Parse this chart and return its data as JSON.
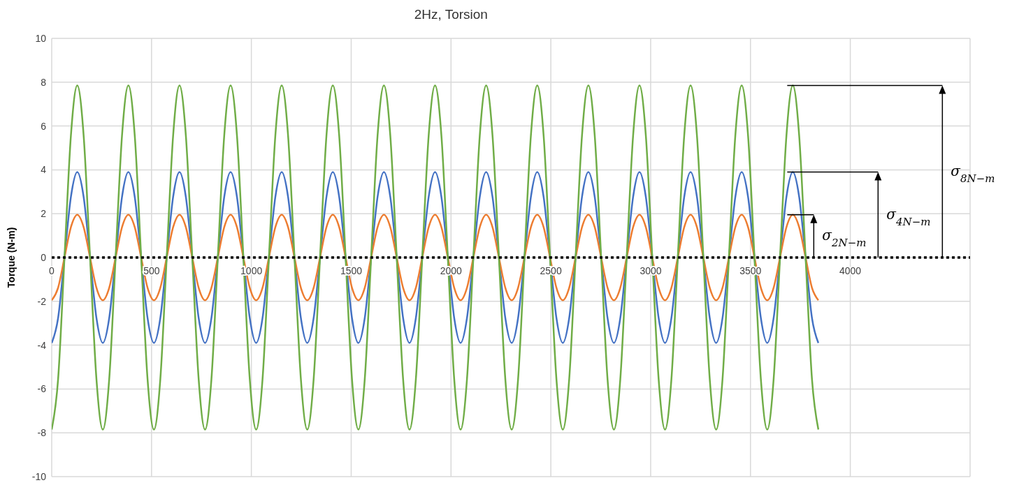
{
  "chart_data": {
    "type": "line",
    "title": "2Hz, Torsion",
    "ylabel": "Torque (N-m)",
    "x": [
      0,
      32,
      64,
      96,
      128,
      160,
      192,
      224,
      256,
      288,
      320,
      352,
      384,
      416,
      448,
      480,
      512,
      544,
      576,
      608,
      640,
      672,
      704,
      736,
      768,
      800,
      832,
      864,
      896,
      928,
      960,
      992,
      1024,
      1056,
      1088,
      1120,
      1152,
      1184,
      1216,
      1248,
      1280,
      1312,
      1344,
      1376,
      1408,
      1440,
      1472,
      1504,
      1536,
      1568,
      1600,
      1632,
      1664,
      1696,
      1728,
      1760,
      1792,
      1824,
      1856,
      1888,
      1920,
      1952,
      1984,
      2016,
      2048,
      2080,
      2112,
      2144,
      2176,
      2208,
      2240,
      2272,
      2304,
      2336,
      2368,
      2400,
      2432,
      2464,
      2496,
      2528,
      2560,
      2592,
      2624,
      2656,
      2688,
      2720,
      2752,
      2784,
      2816,
      2848,
      2880,
      2912,
      2944,
      2976,
      3008,
      3040,
      3072,
      3104,
      3136,
      3168,
      3200,
      3232,
      3264,
      3296,
      3328,
      3360,
      3392,
      3424,
      3456,
      3488,
      3520,
      3552,
      3584,
      3616,
      3648,
      3680,
      3712,
      3744,
      3776,
      3808,
      3840
    ],
    "series": [
      {
        "color": "#4472c4",
        "values": [
          -3.9,
          -2.76,
          0,
          2.76,
          3.9,
          2.76,
          0,
          -2.76,
          -3.9,
          -2.76,
          0,
          2.76,
          3.9,
          2.76,
          0,
          -2.76,
          -3.9,
          -2.76,
          0,
          2.76,
          3.9,
          2.76,
          0,
          -2.76,
          -3.9,
          -2.76,
          0,
          2.76,
          3.9,
          2.76,
          0,
          -2.76,
          -3.9,
          -2.76,
          0,
          2.76,
          3.9,
          2.76,
          0,
          -2.76,
          -3.9,
          -2.76,
          0,
          2.76,
          3.9,
          2.76,
          0,
          -2.76,
          -3.9,
          -2.76,
          0,
          2.76,
          3.9,
          2.76,
          0,
          -2.76,
          -3.9,
          -2.76,
          0,
          2.76,
          3.9,
          2.76,
          0,
          -2.76,
          -3.9,
          -2.76,
          0,
          2.76,
          3.9,
          2.76,
          0,
          -2.76,
          -3.9,
          -2.76,
          0,
          2.76,
          3.9,
          2.76,
          0,
          -2.76,
          -3.9,
          -2.76,
          0,
          2.76,
          3.9,
          2.76,
          0,
          -2.76,
          -3.9,
          -2.76,
          0,
          2.76,
          3.9,
          2.76,
          0,
          -2.76,
          -3.9,
          -2.76,
          0,
          2.76,
          3.9,
          2.76,
          0,
          -2.76,
          -3.9,
          -2.76,
          0,
          2.76,
          3.9,
          2.76,
          0,
          -2.76,
          -3.9,
          -2.76,
          0,
          2.76,
          3.9,
          2.76,
          0,
          -2.76,
          -3.9
        ]
      },
      {
        "color": "#ed7d31",
        "values": [
          -1.95,
          -1.38,
          0,
          1.38,
          1.95,
          1.38,
          0,
          -1.38,
          -1.95,
          -1.38,
          0,
          1.38,
          1.95,
          1.38,
          0,
          -1.38,
          -1.95,
          -1.38,
          0,
          1.38,
          1.95,
          1.38,
          0,
          -1.38,
          -1.95,
          -1.38,
          0,
          1.38,
          1.95,
          1.38,
          0,
          -1.38,
          -1.95,
          -1.38,
          0,
          1.38,
          1.95,
          1.38,
          0,
          -1.38,
          -1.95,
          -1.38,
          0,
          1.38,
          1.95,
          1.38,
          0,
          -1.38,
          -1.95,
          -1.38,
          0,
          1.38,
          1.95,
          1.38,
          0,
          -1.38,
          -1.95,
          -1.38,
          0,
          1.38,
          1.95,
          1.38,
          0,
          -1.38,
          -1.95,
          -1.38,
          0,
          1.38,
          1.95,
          1.38,
          0,
          -1.38,
          -1.95,
          -1.38,
          0,
          1.38,
          1.95,
          1.38,
          0,
          -1.38,
          -1.95,
          -1.38,
          0,
          1.38,
          1.95,
          1.38,
          0,
          -1.38,
          -1.95,
          -1.38,
          0,
          1.38,
          1.95,
          1.38,
          0,
          -1.38,
          -1.95,
          -1.38,
          0,
          1.38,
          1.95,
          1.38,
          0,
          -1.38,
          -1.95,
          -1.38,
          0,
          1.38,
          1.95,
          1.38,
          0,
          -1.38,
          -1.95,
          -1.38,
          0,
          1.38,
          1.95,
          1.38,
          0,
          -1.38,
          -1.95
        ]
      },
      {
        "color": "#70ad47",
        "values": [
          -7.85,
          -5.55,
          0,
          5.55,
          7.85,
          5.55,
          0,
          -5.55,
          -7.85,
          -5.55,
          0,
          5.55,
          7.85,
          5.55,
          0,
          -5.55,
          -7.85,
          -5.55,
          0,
          5.55,
          7.85,
          5.55,
          0,
          -5.55,
          -7.85,
          -5.55,
          0,
          5.55,
          7.85,
          5.55,
          0,
          -5.55,
          -7.85,
          -5.55,
          0,
          5.55,
          7.85,
          5.55,
          0,
          -5.55,
          -7.85,
          -5.55,
          0,
          5.55,
          7.85,
          5.55,
          0,
          -5.55,
          -7.85,
          -5.55,
          0,
          5.55,
          7.85,
          5.55,
          0,
          -5.55,
          -7.85,
          -5.55,
          0,
          5.55,
          7.85,
          5.55,
          0,
          -5.55,
          -7.85,
          -5.55,
          0,
          5.55,
          7.85,
          5.55,
          0,
          -5.55,
          -7.85,
          -5.55,
          0,
          5.55,
          7.85,
          5.55,
          0,
          -5.55,
          -7.85,
          -5.55,
          0,
          5.55,
          7.85,
          5.55,
          0,
          -5.55,
          -7.85,
          -5.55,
          0,
          5.55,
          7.85,
          5.55,
          0,
          -5.55,
          -7.85,
          -5.55,
          0,
          5.55,
          7.85,
          5.55,
          0,
          -5.55,
          -7.85,
          -5.55,
          0,
          5.55,
          7.85,
          5.55,
          0,
          -5.55,
          -7.85,
          -5.55,
          0,
          5.55,
          7.85,
          5.55,
          0,
          -5.55,
          -7.85
        ]
      }
    ],
    "xlim": [
      0,
      4600
    ],
    "xticks": [
      0,
      500,
      1000,
      1500,
      2000,
      2500,
      3000,
      3500,
      4000
    ],
    "ylim": [
      -10,
      10
    ],
    "yticks": [
      -10,
      -8,
      -6,
      -4,
      -2,
      0,
      2,
      4,
      6,
      8,
      10
    ],
    "grid": true,
    "legend": false,
    "marker": "none",
    "line_style": "solid",
    "ref_lines": [
      {
        "axis": "y",
        "value": 0,
        "color": "#000000",
        "line_style": "dotted"
      }
    ],
    "annotations": [
      {
        "text": "σ$_{2N−m}$",
        "x": 3712,
        "y": 1.95
      },
      "σ$_{4N−m}$",
      "σ$_{8N−m}$"
    ]
  }
}
